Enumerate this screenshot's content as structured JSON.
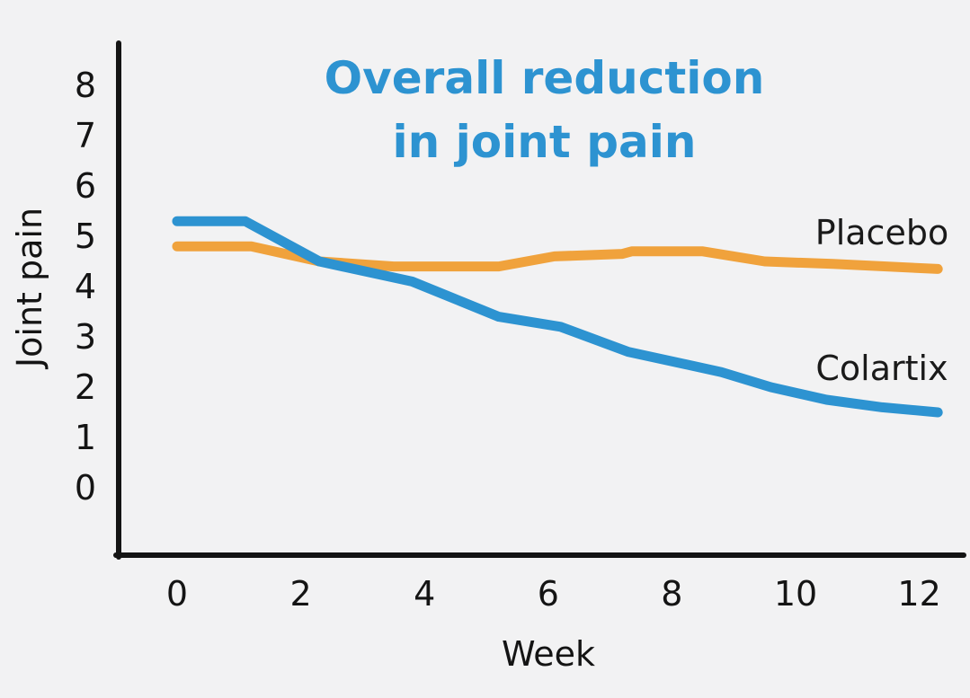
{
  "page": {
    "background_color": "#f2f2f3",
    "axis_color": "#141414"
  },
  "chart_data": {
    "type": "line",
    "title": "Overall reduction in joint pain",
    "title_lines": [
      "Overall reduction",
      "in joint pain"
    ],
    "title_color": "#2d93d1",
    "xlabel": "Week",
    "ylabel": "Joint pain",
    "x_ticks": [
      0,
      2,
      4,
      6,
      8,
      10,
      12
    ],
    "y_ticks": [
      8,
      7,
      6,
      5,
      4,
      3,
      2,
      1,
      0
    ],
    "xlim": [
      0,
      12.5
    ],
    "ylim": [
      0,
      8
    ],
    "grid": false,
    "legend_position": "inline-right",
    "series": [
      {
        "name": "Colartix",
        "color": "#2d93d1",
        "points": [
          [
            0,
            5.3
          ],
          [
            1.1,
            5.3
          ],
          [
            2.3,
            4.5
          ],
          [
            3.8,
            4.1
          ],
          [
            5.2,
            3.4
          ],
          [
            6.2,
            3.2
          ],
          [
            7.3,
            2.7
          ],
          [
            8.8,
            2.3
          ],
          [
            9.6,
            2.0
          ],
          [
            10.5,
            1.75
          ],
          [
            11.4,
            1.6
          ],
          [
            12.3,
            1.5
          ]
        ]
      },
      {
        "name": "Placebo",
        "color": "#f0a23c",
        "points": [
          [
            0,
            4.8
          ],
          [
            1.2,
            4.8
          ],
          [
            2.3,
            4.5
          ],
          [
            3.5,
            4.4
          ],
          [
            5.2,
            4.4
          ],
          [
            6.1,
            4.6
          ],
          [
            7.2,
            4.65
          ],
          [
            7.35,
            4.7
          ],
          [
            8.5,
            4.7
          ],
          [
            9.5,
            4.5
          ],
          [
            10.6,
            4.45
          ],
          [
            12.3,
            4.35
          ]
        ]
      }
    ]
  }
}
